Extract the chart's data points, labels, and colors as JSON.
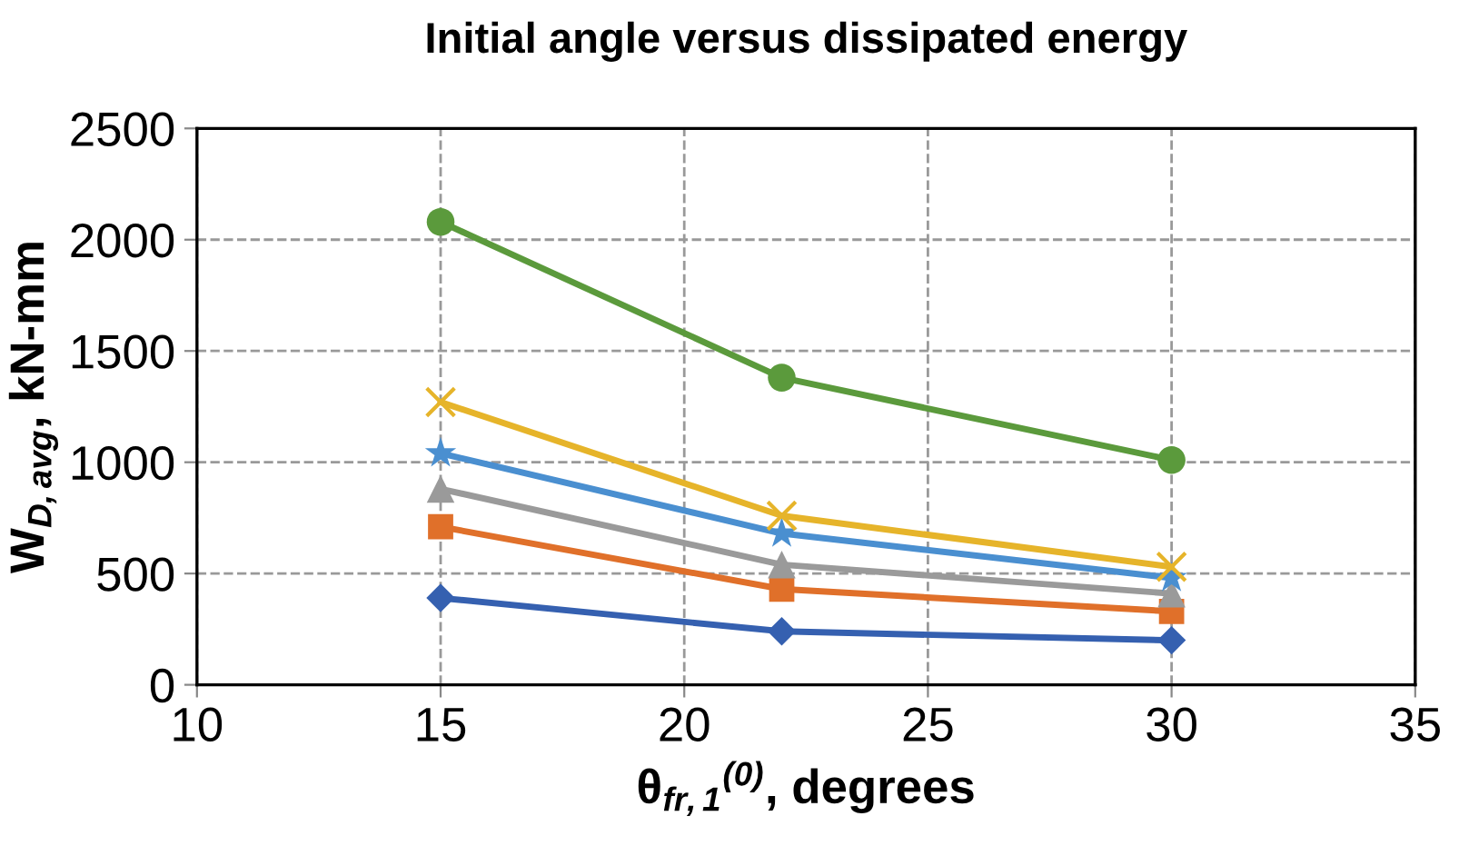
{
  "chart_data": {
    "type": "line",
    "title": "Initial angle versus dissipated energy",
    "xlabel": "θ$_{fr,1}$$^{(0)}$, degrees",
    "ylabel": "W$_{D,avg}$, kN-mm",
    "x": [
      15,
      22,
      30
    ],
    "series": [
      {
        "color": "#5b9a3c",
        "marker": "circle",
        "values": [
          2080,
          1380,
          1010
        ]
      },
      {
        "color": "#e6b42a",
        "marker": "cross",
        "values": [
          1270,
          760,
          530
        ]
      },
      {
        "color": "#4a8fd0",
        "marker": "star",
        "values": [
          1040,
          680,
          480
        ]
      },
      {
        "color": "#9a9a9a",
        "marker": "triangle",
        "values": [
          880,
          540,
          410
        ]
      },
      {
        "color": "#e0702a",
        "marker": "square",
        "values": [
          710,
          430,
          330
        ]
      },
      {
        "color": "#3560b0",
        "marker": "diamond",
        "values": [
          390,
          240,
          200
        ]
      }
    ],
    "xlim": [
      10,
      35
    ],
    "xticks": [
      10,
      15,
      20,
      25,
      30,
      35
    ],
    "ylim": [
      0,
      2500
    ],
    "yticks": [
      0,
      500,
      1000,
      1500,
      2000,
      2500
    ],
    "grid": true,
    "line_style": "solid"
  }
}
